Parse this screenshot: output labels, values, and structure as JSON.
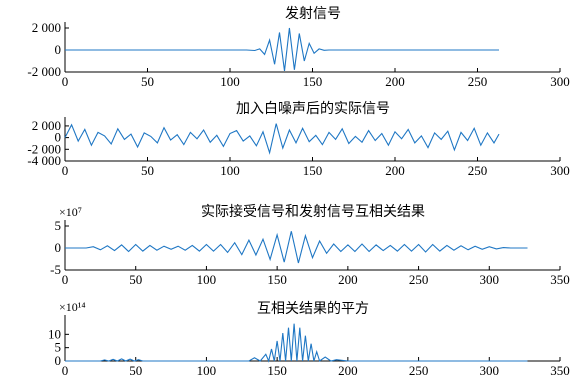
{
  "chart_data": [
    {
      "type": "line",
      "title": "发射信号",
      "xlim": [
        0,
        300
      ],
      "ylim": [
        -2000,
        2000
      ],
      "xticks": [
        0,
        50,
        100,
        150,
        200,
        250,
        300
      ],
      "xtick_labels": [
        "0",
        "50",
        "100",
        "150",
        "200",
        "250",
        "300"
      ],
      "yticks": [
        2000,
        0,
        -2000
      ],
      "ytick_labels": [
        "2 000",
        "0",
        "-2 000"
      ],
      "y_exponent_label": "",
      "series": [
        {
          "x": [
            0,
            105,
            110,
            115,
            118,
            121,
            124,
            127,
            130,
            133,
            136,
            139,
            142,
            145,
            148,
            151,
            154,
            157,
            160,
            165,
            263
          ],
          "y": [
            0,
            0,
            0,
            -50,
            100,
            -400,
            900,
            -1300,
            1600,
            -1900,
            2000,
            -1800,
            1500,
            -1000,
            600,
            -300,
            100,
            -30,
            0,
            0,
            0
          ]
        }
      ]
    },
    {
      "type": "line",
      "title": "加入白噪声后的实际信号",
      "xlim": [
        0,
        300
      ],
      "ylim": [
        -4000,
        2500
      ],
      "xticks": [
        0,
        50,
        100,
        150,
        200,
        250,
        300
      ],
      "xtick_labels": [
        "0",
        "50",
        "100",
        "150",
        "200",
        "250",
        "300"
      ],
      "yticks": [
        2000,
        0,
        -2000,
        -4000
      ],
      "ytick_labels": [
        "2 000",
        "0",
        "-2 000",
        "-4 000"
      ],
      "y_exponent_label": "",
      "series": [
        {
          "x": [
            0,
            4,
            8,
            12,
            16,
            20,
            24,
            28,
            32,
            36,
            40,
            44,
            48,
            52,
            56,
            60,
            64,
            68,
            72,
            76,
            80,
            84,
            88,
            92,
            96,
            100,
            104,
            108,
            112,
            116,
            120,
            124,
            128,
            132,
            136,
            140,
            144,
            148,
            152,
            156,
            160,
            164,
            168,
            172,
            176,
            180,
            184,
            188,
            192,
            196,
            200,
            204,
            208,
            212,
            216,
            220,
            224,
            228,
            232,
            236,
            240,
            244,
            248,
            252,
            256,
            260,
            263
          ],
          "y": [
            0,
            2200,
            -600,
            1400,
            -1300,
            900,
            300,
            -1100,
            1500,
            -300,
            600,
            -1600,
            800,
            200,
            -900,
            1700,
            -400,
            500,
            -1200,
            900,
            -200,
            1300,
            -800,
            400,
            -1500,
            700,
            1200,
            -600,
            300,
            -1400,
            1000,
            -2600,
            2400,
            -1800,
            1300,
            -900,
            1600,
            -700,
            400,
            -1200,
            900,
            -300,
            1500,
            -1000,
            200,
            -800,
            1200,
            -500,
            700,
            -1300,
            1000,
            -200,
            1400,
            -900,
            300,
            -1700,
            800,
            -300,
            1100,
            -2100,
            900,
            -500,
            1600,
            -1300,
            800,
            -900,
            600
          ]
        }
      ]
    },
    {
      "type": "line",
      "title": "实际接受信号和发射信号互相关结果",
      "xlim": [
        0,
        350
      ],
      "ylim": [
        -5,
        5
      ],
      "xticks": [
        0,
        50,
        100,
        150,
        200,
        250,
        300,
        350
      ],
      "xtick_labels": [
        "0",
        "50",
        "100",
        "150",
        "200",
        "250",
        "300",
        "350"
      ],
      "yticks": [
        5,
        0,
        -5
      ],
      "ytick_labels": [
        "5",
        "0",
        "-5"
      ],
      "y_exponent_label": "×10⁷",
      "series": [
        {
          "x": [
            0,
            15,
            20,
            25,
            30,
            35,
            40,
            45,
            50,
            55,
            60,
            65,
            70,
            75,
            80,
            85,
            90,
            95,
            100,
            105,
            110,
            115,
            120,
            125,
            130,
            135,
            140,
            145,
            150,
            155,
            160,
            165,
            170,
            175,
            180,
            185,
            190,
            195,
            200,
            205,
            210,
            215,
            220,
            225,
            230,
            235,
            240,
            245,
            250,
            255,
            260,
            265,
            270,
            275,
            280,
            285,
            290,
            295,
            300,
            305,
            310,
            315,
            327
          ],
          "y": [
            0,
            0,
            0.3,
            -0.4,
            0.5,
            -0.6,
            0.7,
            -0.8,
            0.8,
            -0.7,
            0.6,
            -0.5,
            0.4,
            -0.3,
            0.4,
            -0.5,
            0.6,
            -0.7,
            0.8,
            -0.7,
            0.8,
            -1.0,
            1.2,
            -1.5,
            1.8,
            -1.6,
            2.0,
            -2.6,
            3.0,
            -3.2,
            3.8,
            -3.4,
            2.8,
            -2.2,
            1.6,
            -1.2,
            0.9,
            -0.8,
            0.7,
            -0.8,
            0.9,
            -0.8,
            0.7,
            -0.6,
            0.6,
            -0.7,
            0.8,
            -0.7,
            0.8,
            -0.9,
            0.8,
            -0.7,
            0.6,
            -0.5,
            0.5,
            -0.4,
            0.4,
            -0.3,
            0.3,
            -0.2,
            0.1,
            0,
            0
          ]
        }
      ]
    },
    {
      "type": "line",
      "title": "互相关结果的平方",
      "xlim": [
        0,
        350
      ],
      "ylim": [
        0,
        15
      ],
      "xticks": [
        0,
        50,
        100,
        150,
        200,
        250,
        300,
        350
      ],
      "xtick_labels": [
        "0",
        "50",
        "100",
        "150",
        "200",
        "250",
        "300",
        "350"
      ],
      "yticks": [
        10,
        5,
        0
      ],
      "ytick_labels": [
        "10",
        "5",
        "0"
      ],
      "y_exponent_label": "×10¹⁴",
      "series": [
        {
          "x": [
            0,
            25,
            28,
            31,
            34,
            37,
            40,
            43,
            46,
            49,
            52,
            55,
            60,
            100,
            130,
            134,
            138,
            142,
            144,
            146,
            148,
            150,
            152,
            154,
            156,
            158,
            160,
            162,
            164,
            166,
            168,
            170,
            172,
            174,
            176,
            178,
            180,
            184,
            188,
            192,
            200,
            240,
            300,
            327
          ],
          "y": [
            0,
            0,
            0.4,
            0,
            0.6,
            0,
            0.8,
            0,
            0.7,
            0,
            0.5,
            0,
            0,
            0,
            0,
            1.2,
            0,
            2.5,
            0,
            4.5,
            0,
            7.5,
            0,
            10.5,
            0,
            12.5,
            0,
            14.0,
            0,
            12.5,
            0,
            9.5,
            0,
            6.5,
            0,
            3.5,
            0,
            1.5,
            0,
            0.5,
            0,
            0,
            0,
            0
          ]
        }
      ]
    }
  ]
}
